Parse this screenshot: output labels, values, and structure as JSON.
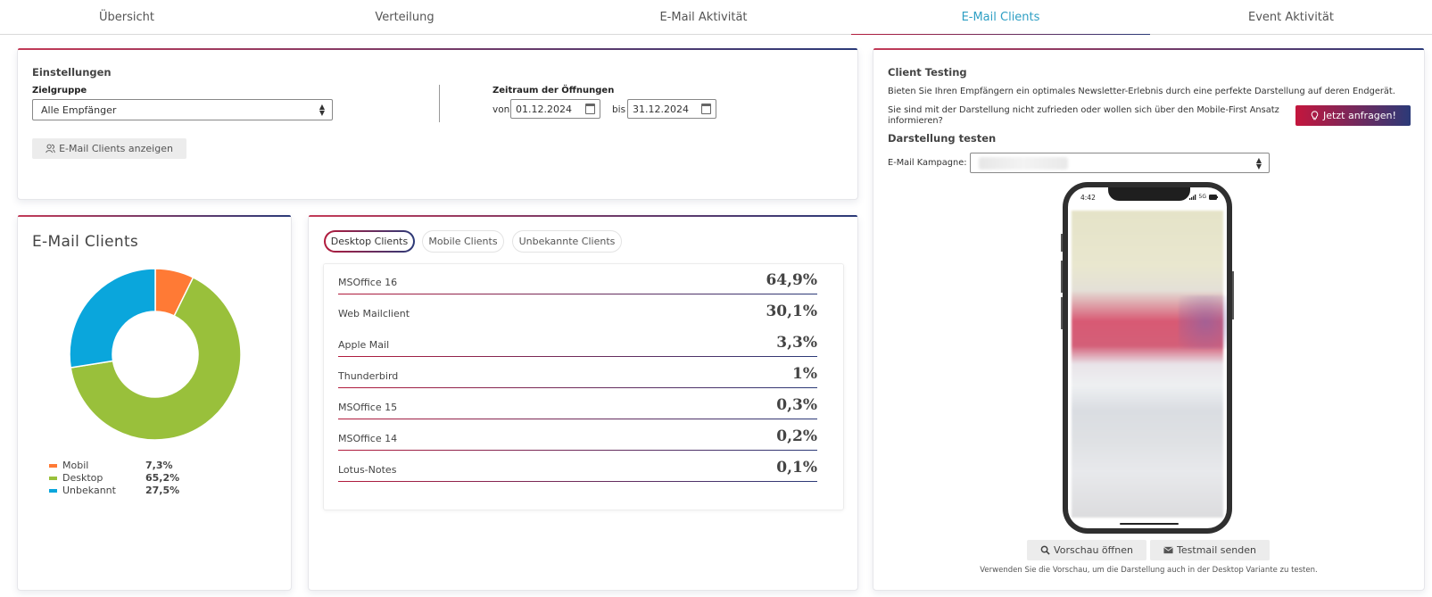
{
  "tabs": [
    {
      "label": "Übersicht"
    },
    {
      "label": "Verteilung"
    },
    {
      "label": "E-Mail Aktivität"
    },
    {
      "label": "E-Mail Clients",
      "active": true
    },
    {
      "label": "Event Aktivität"
    }
  ],
  "settings": {
    "title": "Einstellungen",
    "group_label": "Zielgruppe",
    "group_value": "Alle Empfänger",
    "period_label": "Zeitraum der Öffnungen",
    "from_label": "von",
    "from_value": "01.12.2024",
    "to_label": "bis",
    "to_value": "31.12.2024",
    "show_button": "E-Mail Clients anzeigen"
  },
  "chart_card": {
    "title": "E-Mail Clients"
  },
  "chart_data": {
    "type": "pie",
    "title": "E-Mail Clients",
    "donut": true,
    "categories": [
      "Mobil",
      "Desktop",
      "Unbekannt"
    ],
    "values": [
      7.3,
      65.2,
      27.5
    ],
    "labels": [
      "7,3%",
      "65,2%",
      "27,5%"
    ],
    "colors": [
      "#ff7a35",
      "#99c03b",
      "#0aa6dc"
    ],
    "legend": "bottom-left"
  },
  "clients": {
    "tabs": [
      {
        "label": "Desktop Clients",
        "active": true
      },
      {
        "label": "Mobile Clients"
      },
      {
        "label": "Unbekannte Clients"
      }
    ],
    "rows": [
      {
        "name": "MSOffice 16",
        "value": "64,9%"
      },
      {
        "name": "Web Mailclient",
        "value": "30,1%"
      },
      {
        "name": "Apple Mail",
        "value": "3,3%"
      },
      {
        "name": "Thunderbird",
        "value": "1%"
      },
      {
        "name": "MSOffice 15",
        "value": "0,3%"
      },
      {
        "name": "MSOffice 14",
        "value": "0,2%"
      },
      {
        "name": "Lotus-Notes",
        "value": "0,1%"
      }
    ]
  },
  "testing": {
    "title": "Client Testing",
    "text1": "Bieten Sie Ihren Empfängern ein optimales Newsletter-Erlebnis durch eine perfekte Darstellung auf deren Endgerät.",
    "text2": "Sie sind mit der Darstellung nicht zufrieden oder wollen sich über den Mobile-First Ansatz informieren?",
    "request_button": "Jetzt anfragen!",
    "subtitle": "Darstellung testen",
    "campaign_label": "E-Mail Kampagne:",
    "phone_time": "4:42",
    "phone_network": "5G",
    "preview_button": "Vorschau öffnen",
    "testmail_button": "Testmail senden",
    "hint": "Verwenden Sie die Vorschau, um die Darstellung auch in der Desktop Variante zu testen."
  }
}
